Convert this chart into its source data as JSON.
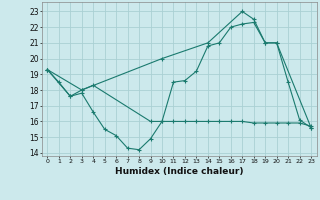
{
  "xlabel": "Humidex (Indice chaleur)",
  "bg_color": "#cce9ec",
  "grid_color": "#aad0d4",
  "line_color": "#1a7a6e",
  "xlim": [
    -0.5,
    23.5
  ],
  "ylim": [
    13.8,
    23.6
  ],
  "yticks": [
    14,
    15,
    16,
    17,
    18,
    19,
    20,
    21,
    22,
    23
  ],
  "xticks": [
    0,
    1,
    2,
    3,
    4,
    5,
    6,
    7,
    8,
    9,
    10,
    11,
    12,
    13,
    14,
    15,
    16,
    17,
    18,
    19,
    20,
    21,
    22,
    23
  ],
  "line1_x": [
    0,
    1,
    2,
    3,
    4,
    5,
    6,
    7,
    8,
    9,
    10,
    11,
    12,
    13,
    14,
    15,
    16,
    17,
    18,
    19,
    20,
    21,
    22,
    23
  ],
  "line1_y": [
    19.3,
    18.5,
    17.6,
    17.8,
    16.6,
    15.5,
    15.1,
    14.3,
    14.2,
    14.9,
    16.0,
    18.5,
    18.6,
    19.2,
    20.8,
    21.0,
    22.0,
    22.2,
    22.3,
    21.0,
    21.0,
    18.5,
    16.1,
    15.6
  ],
  "line2_x": [
    0,
    2,
    3,
    4,
    9,
    10,
    11,
    12,
    13,
    14,
    15,
    16,
    17,
    18,
    19,
    20,
    21,
    22,
    23
  ],
  "line2_y": [
    19.3,
    17.6,
    18.0,
    18.3,
    16.0,
    16.0,
    16.0,
    16.0,
    16.0,
    16.0,
    16.0,
    16.0,
    16.0,
    15.9,
    15.9,
    15.9,
    15.9,
    15.9,
    15.7
  ],
  "line3_x": [
    0,
    3,
    10,
    14,
    17,
    18,
    19,
    20,
    23
  ],
  "line3_y": [
    19.3,
    18.0,
    20.0,
    21.0,
    23.0,
    22.5,
    21.0,
    21.0,
    15.6
  ]
}
